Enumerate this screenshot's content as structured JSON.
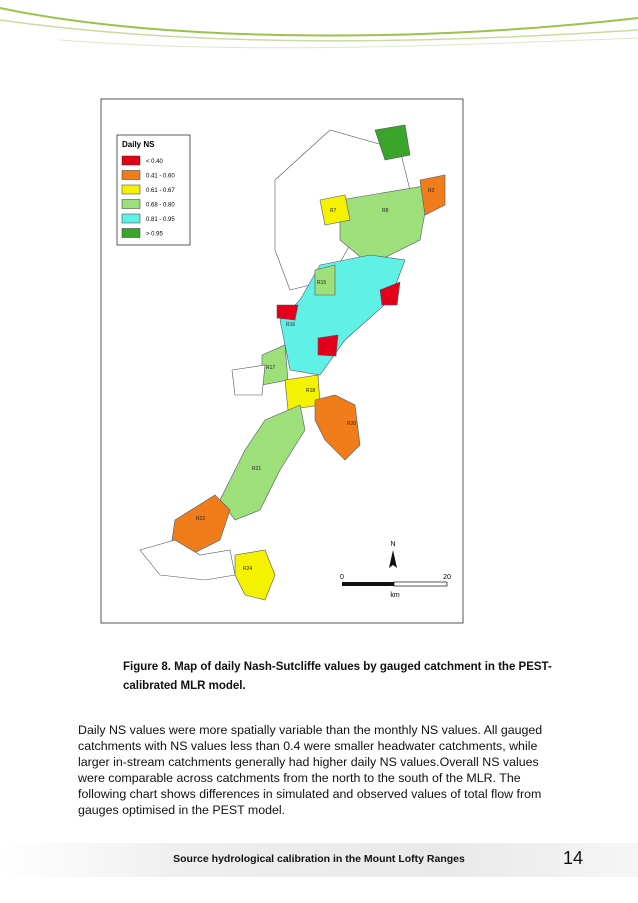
{
  "figure": {
    "legend": {
      "title": "Daily NS",
      "items": [
        {
          "label": "< 0.40",
          "color": "#e3001b"
        },
        {
          "label": "0.41 - 0.60",
          "color": "#f07d1a"
        },
        {
          "label": "0.61 - 0.67",
          "color": "#f5f200"
        },
        {
          "label": "0.68 - 0.80",
          "color": "#9de07a"
        },
        {
          "label": "0.81 - 0.95",
          "color": "#5ff0e6"
        },
        {
          "label": "> 0.95",
          "color": "#3aa52a"
        }
      ]
    },
    "north": "N",
    "scale": {
      "start": "0",
      "end": "20",
      "unit": "km"
    },
    "catchment_labels": [
      "R3",
      "R7",
      "R8",
      "R15",
      "R16",
      "R17",
      "R18",
      "R20",
      "R21",
      "R22",
      "R24"
    ]
  },
  "caption": [
    "Figure 8. Map of daily Nash-Sutcliffe values by gauged catchment in the PEST-",
    "calibrated MLR model."
  ],
  "body": [
    "Daily NS values were more spatially variable than the monthly NS values. All gauged",
    "catchments with NS values less than 0.4 were smaller headwater catchments, while",
    "larger in-stream catchments generally had higher daily NS values.Overall NS values",
    "were comparable across catchments from the north to the south of the MLR. The",
    "following chart shows differences in simulated and observed values of total flow from",
    "gauges optimised in the PEST model."
  ],
  "footer": {
    "title": "Source hydrological calibration in the Mount Lofty Ranges",
    "page": "14"
  }
}
